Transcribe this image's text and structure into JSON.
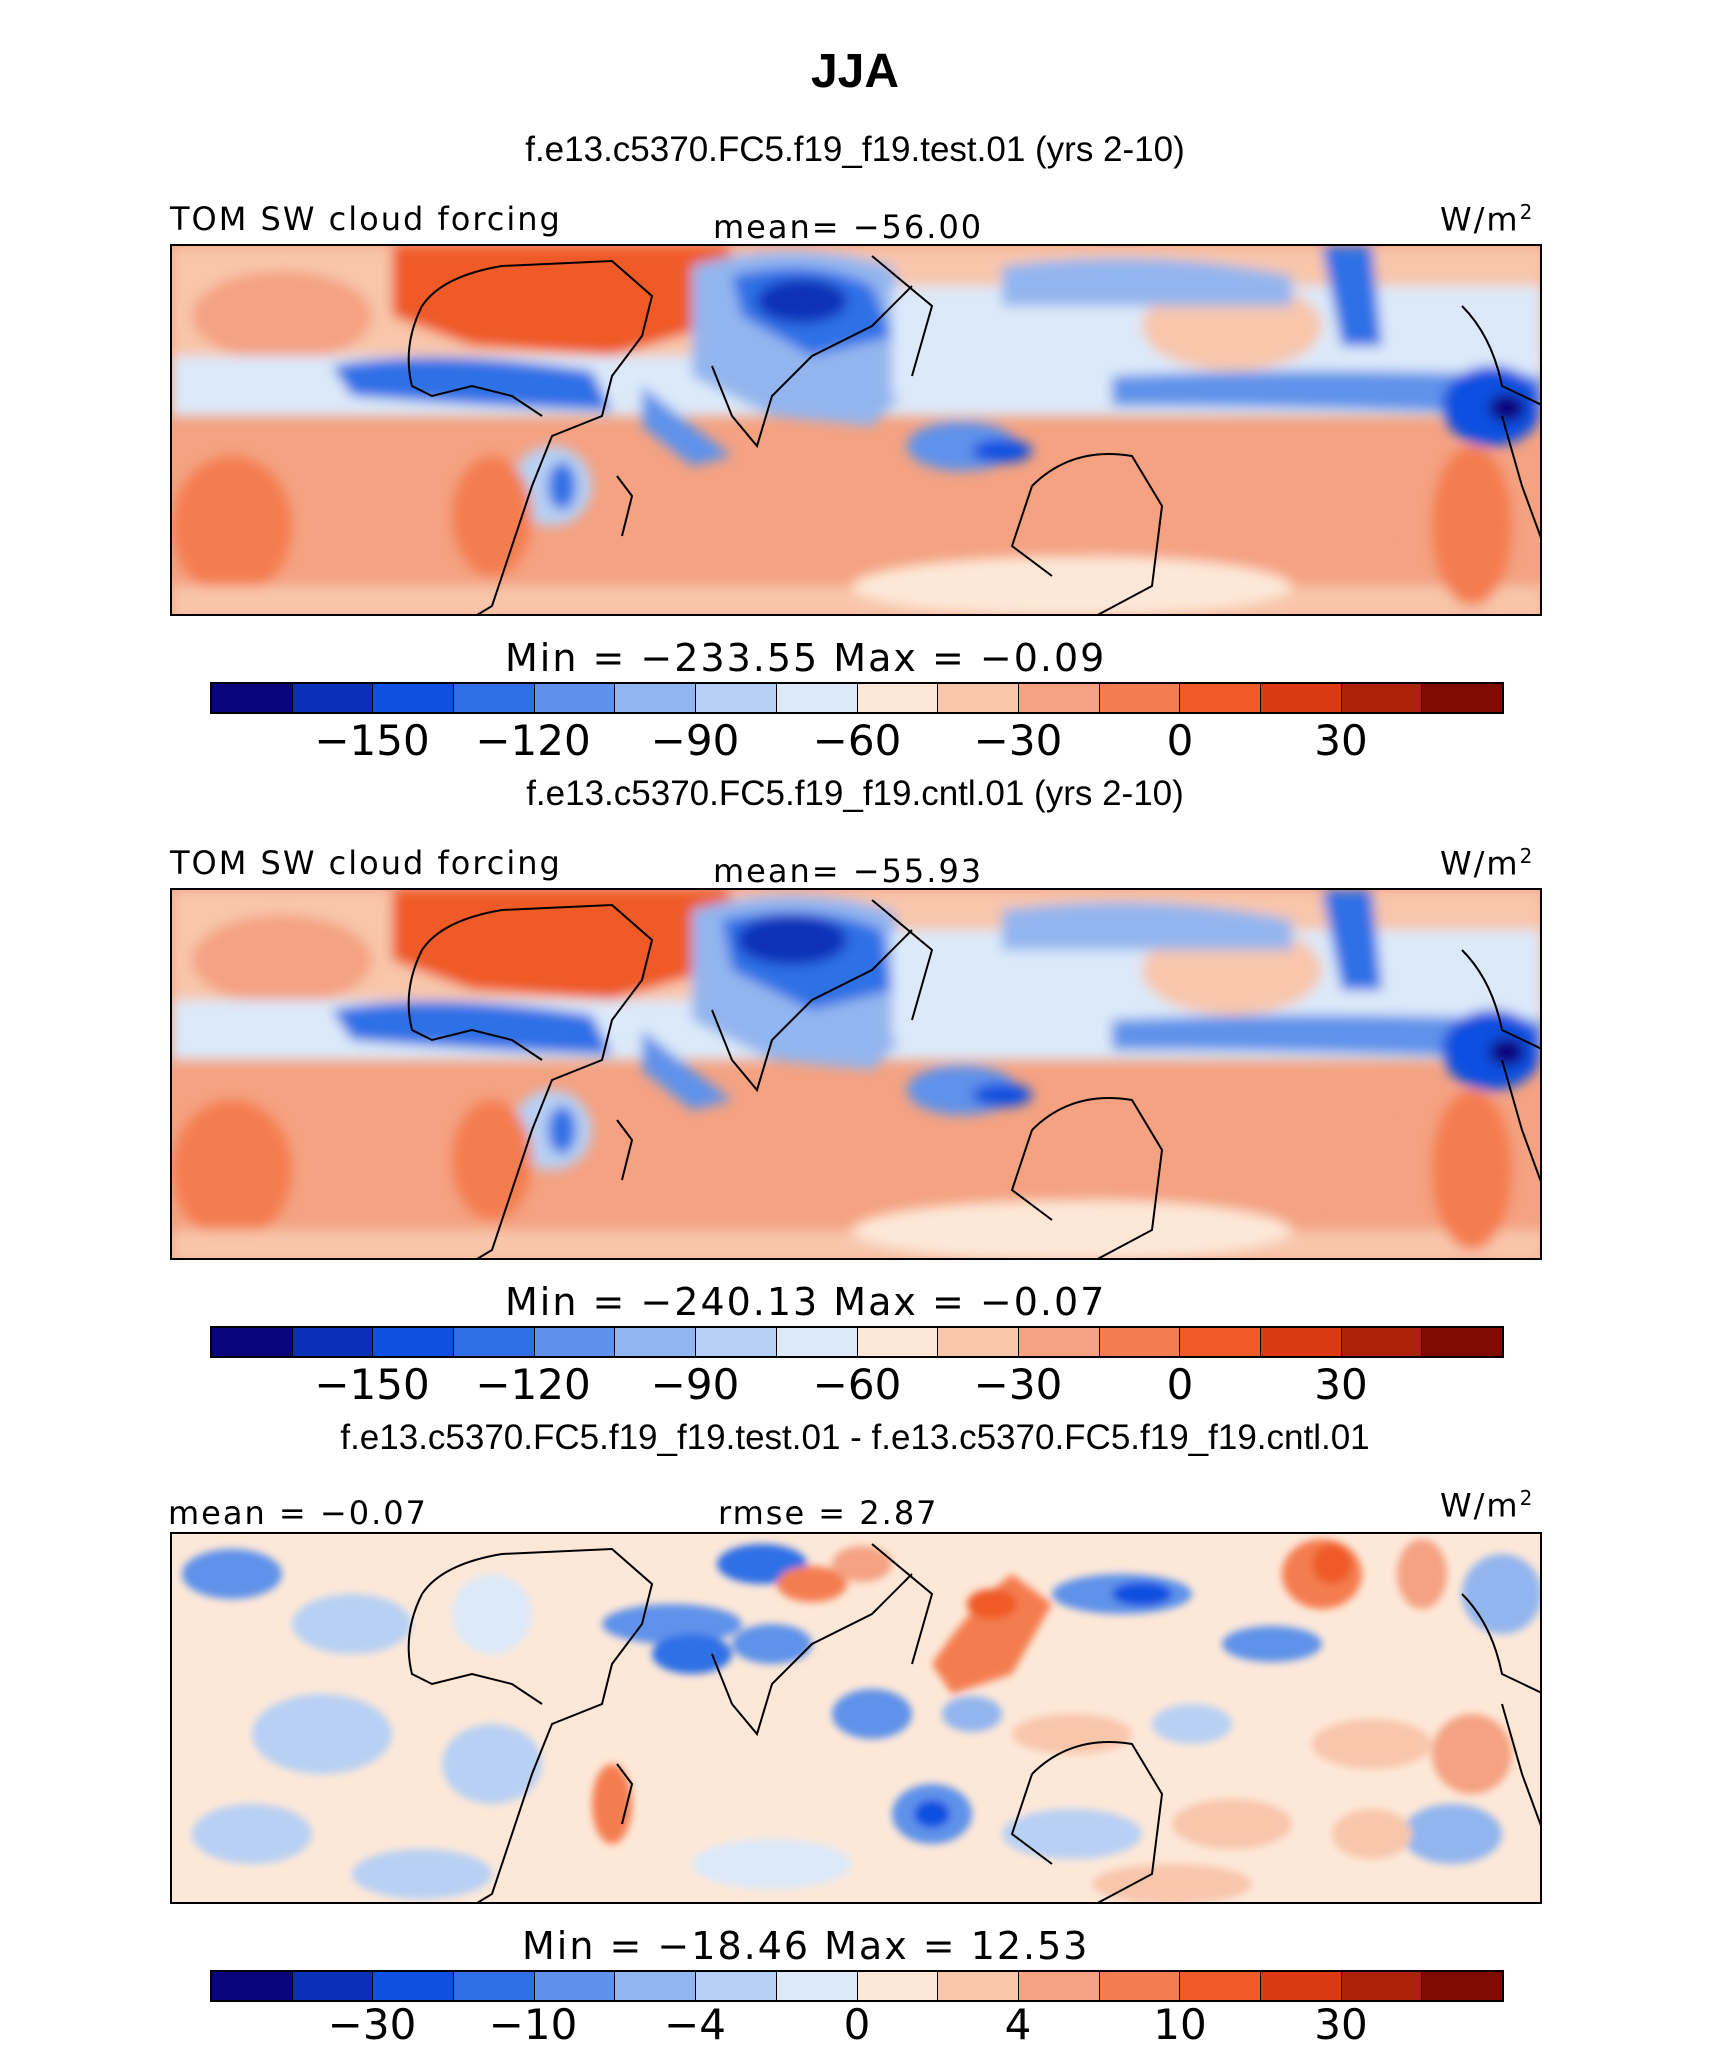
{
  "title": "JJA",
  "units": "W/m",
  "units_sup": "2",
  "palette": [
    "#08057d",
    "#0a30b8",
    "#0f50e0",
    "#2f6fe6",
    "#5e92ea",
    "#93b5ef",
    "#b8d0f4",
    "#dce9f9",
    "#fde8d8",
    "#f8c6ab",
    "#f4a282",
    "#f47d4f",
    "#ef5a27",
    "#d93a12",
    "#ad2009",
    "#7f0c03"
  ],
  "panels": [
    {
      "subtitle": "f.e13.c5370.FC5.f19_f19.test.01 (yrs 2-10)",
      "left_label": "TOM SW cloud forcing",
      "center_label": "mean= −56.00",
      "minmax": "Min  =  −233.55  Max  =    −0.09",
      "ticks": [
        "−150",
        "−120",
        "−90",
        "−60",
        "−30",
        "0",
        "30"
      ]
    },
    {
      "subtitle": "f.e13.c5370.FC5.f19_f19.cntl.01 (yrs 2-10)",
      "left_label": "TOM SW cloud forcing",
      "center_label": "mean= −55.93",
      "minmax": "Min  =  −240.13  Max  =    −0.07",
      "ticks": [
        "−150",
        "−120",
        "−90",
        "−60",
        "−30",
        "0",
        "30"
      ]
    },
    {
      "subtitle": "f.e13.c5370.FC5.f19_f19.test.01 - f.e13.c5370.FC5.f19_f19.cntl.01",
      "left_label": "mean  =   −0.07",
      "center_label": "rmse  =    2.87",
      "minmax": "Min  =  −18.46  Max  =   12.53",
      "ticks": [
        "−30",
        "−10",
        "−4",
        "0",
        "4",
        "10",
        "30"
      ]
    }
  ]
}
